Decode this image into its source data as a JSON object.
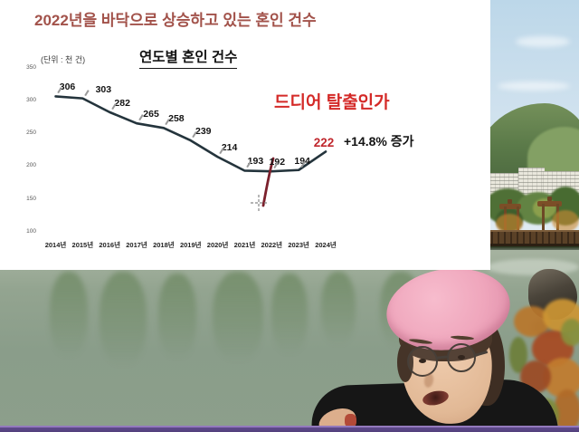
{
  "slide": {
    "main_title": "2022년을 바닥으로 상승하고 있는 혼인 건수",
    "unit_label": "(단위 : 천 건)",
    "annotation": "드디어 탈출인가",
    "increase_label": "+14.8% 증가"
  },
  "chart_data": {
    "type": "line",
    "title": "연도별 혼인 건수",
    "unit": "천 건",
    "categories": [
      "2014년",
      "2015년",
      "2016년",
      "2017년",
      "2018년",
      "2019년",
      "2020년",
      "2021년",
      "2022년",
      "2023년",
      "2024년"
    ],
    "values": [
      306,
      303,
      282,
      265,
      258,
      239,
      214,
      193,
      192,
      194,
      222
    ],
    "y_ticks": [
      350,
      300,
      250,
      200,
      150,
      100
    ],
    "ylim": [
      100,
      350
    ],
    "grid": false,
    "legend": false,
    "highlight_index": 10,
    "annotations": [
      "드디어 탈출인가",
      "+14.8% 증가"
    ]
  },
  "colors": {
    "main_title": "#a2524a",
    "annotation_red": "#d42a28",
    "highlight_red": "#c0272d",
    "line": "#24343c",
    "arrow": "#7c202c",
    "bottom_bar_purple": "#5f4a8b",
    "beret_pink": "#efa6bc"
  }
}
